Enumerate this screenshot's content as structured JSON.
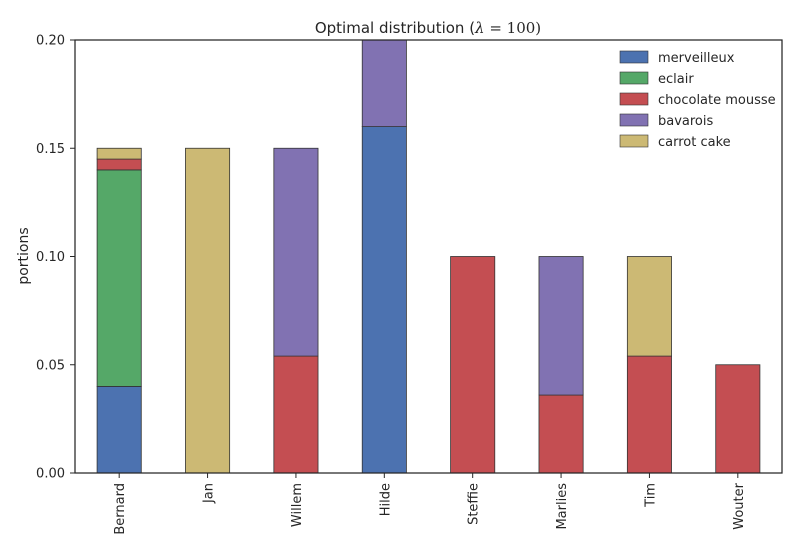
{
  "chart_data": {
    "type": "bar",
    "stacked": true,
    "title": "Optimal distribution (λ = 100)",
    "title_prefix": "Optimal distribution (",
    "title_symbol": "λ",
    "title_suffix": " = 100)",
    "xlabel": "",
    "ylabel": "portions",
    "ylim": [
      0,
      0.2
    ],
    "yticks": [
      "0.00",
      "0.05",
      "0.10",
      "0.15",
      "0.20"
    ],
    "ytick_values": [
      0,
      0.05,
      0.1,
      0.15,
      0.2
    ],
    "grid": false,
    "legend_position": "top-right",
    "categories": [
      "Bernard",
      "Jan",
      "Willem",
      "Hilde",
      "Steffie",
      "Marlies",
      "Tim",
      "Wouter"
    ],
    "series": [
      {
        "name": "merveilleux",
        "color": "#4c72b0",
        "values": [
          0.04,
          0,
          0,
          0.16,
          0,
          0,
          0,
          0
        ]
      },
      {
        "name": "eclair",
        "color": "#55a868",
        "values": [
          0.1,
          0,
          0,
          0,
          0,
          0,
          0,
          0
        ]
      },
      {
        "name": "chocolate mousse",
        "color": "#c44e52",
        "values": [
          0.005,
          0,
          0.054,
          0,
          0.1,
          0.036,
          0.054,
          0.05
        ]
      },
      {
        "name": "bavarois",
        "color": "#8172b2",
        "values": [
          0,
          0,
          0.096,
          0.04,
          0,
          0.064,
          0,
          0
        ]
      },
      {
        "name": "carrot cake",
        "color": "#ccb974",
        "values": [
          0.005,
          0.15,
          0,
          0,
          0,
          0,
          0.046,
          0
        ]
      }
    ]
  }
}
